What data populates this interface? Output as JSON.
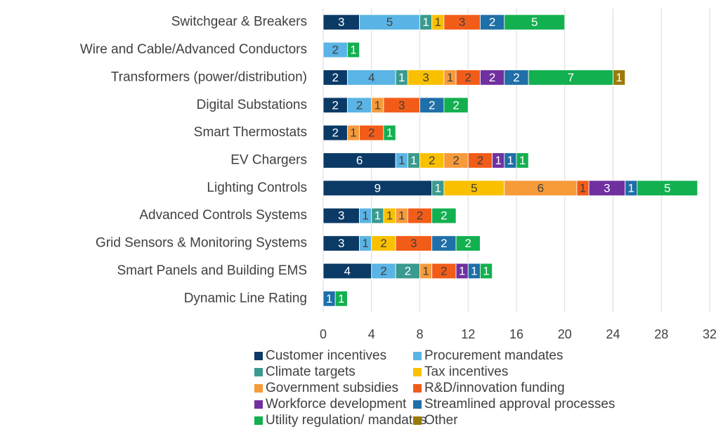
{
  "chart_data": {
    "type": "stacked_barh",
    "categories": [
      "Switchgear & Breakers",
      "Wire and Cable/Advanced Conductors",
      "Transformers (power/distribution)",
      "Digital Substations",
      "Smart Thermostats",
      "EV Chargers",
      "Lighting Controls",
      "Advanced Controls Systems",
      "Grid Sensors & Monitoring Systems",
      "Smart Panels and Building EMS",
      "Dynamic Line Rating"
    ],
    "series": [
      {
        "name": "Customer incentives",
        "color": "#0b3a66",
        "values": [
          3,
          null,
          2,
          2,
          2,
          6,
          9,
          3,
          3,
          4,
          null
        ]
      },
      {
        "name": "Procurement mandates",
        "color": "#5ab4e5",
        "values": [
          5,
          2,
          4,
          2,
          null,
          1,
          null,
          1,
          1,
          2,
          null
        ]
      },
      {
        "name": "Climate targets",
        "color": "#3a9a8f",
        "values": [
          1,
          null,
          1,
          null,
          null,
          1,
          1,
          1,
          null,
          2,
          null
        ]
      },
      {
        "name": "Tax incentives",
        "color": "#f9c000",
        "values": [
          1,
          null,
          3,
          null,
          null,
          2,
          5,
          1,
          2,
          null,
          null
        ]
      },
      {
        "name": "Government subsidies",
        "color": "#f79a3a",
        "values": [
          null,
          null,
          1,
          1,
          1,
          2,
          6,
          1,
          null,
          1,
          null
        ]
      },
      {
        "name": "R&D/innovation funding",
        "color": "#f25c19",
        "values": [
          3,
          null,
          2,
          3,
          2,
          2,
          1,
          2,
          3,
          2,
          null
        ]
      },
      {
        "name": "Workforce development",
        "color": "#7030a0",
        "values": [
          null,
          null,
          2,
          null,
          null,
          1,
          3,
          null,
          null,
          1,
          null
        ]
      },
      {
        "name": "Streamlined approval processes",
        "color": "#1f6fa8",
        "values": [
          2,
          null,
          2,
          2,
          null,
          1,
          1,
          null,
          2,
          1,
          1
        ]
      },
      {
        "name": "Utility regulation/ mandates",
        "color": "#13b050",
        "values": [
          5,
          1,
          7,
          2,
          1,
          1,
          5,
          2,
          2,
          1,
          1
        ]
      },
      {
        "name": "Other",
        "color": "#9a7b0a",
        "values": [
          null,
          null,
          1,
          null,
          null,
          null,
          null,
          null,
          null,
          null,
          null
        ]
      }
    ],
    "xlim": [
      0,
      32
    ],
    "xticks": [
      0,
      4,
      8,
      12,
      16,
      20,
      24,
      28,
      32
    ],
    "grid": true,
    "legend": "bottom"
  }
}
